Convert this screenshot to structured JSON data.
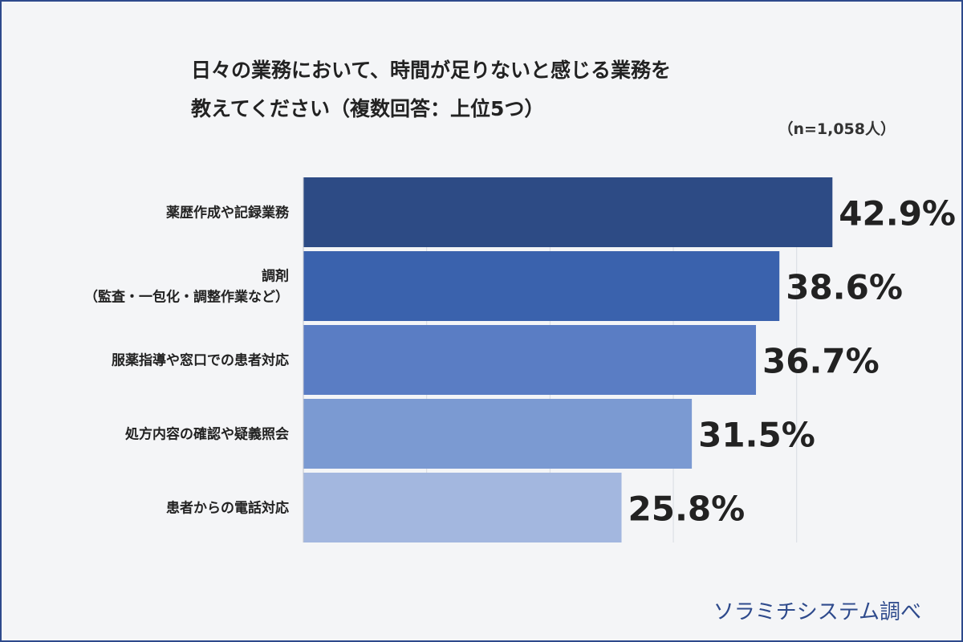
{
  "title_lines": [
    "日々の業務において、時間が足りないと感じる業務を",
    "教えてください（複数回答：上位5つ）"
  ],
  "sample_size": "（n=1,058人）",
  "source": "ソラミチシステム調べ",
  "colors": [
    "#2d4b85",
    "#3a62ad",
    "#5a7dc4",
    "#7b9ad2",
    "#a3b7df"
  ],
  "chart_data": {
    "type": "bar",
    "orientation": "horizontal",
    "categories": [
      [
        "薬歴作成や記録業務"
      ],
      [
        "調剤",
        "（監査・一包化・調整作業など）"
      ],
      [
        "服薬指導や窓口での患者対応"
      ],
      [
        "処方内容の確認や疑義照会"
      ],
      [
        "患者からの電話対応"
      ]
    ],
    "values": [
      42.9,
      38.6,
      36.7,
      31.5,
      25.8
    ],
    "value_labels": [
      "42.9%",
      "38.6%",
      "36.7%",
      "31.5%",
      "25.8%"
    ],
    "xlim": [
      0,
      47.5
    ],
    "grid": true
  }
}
